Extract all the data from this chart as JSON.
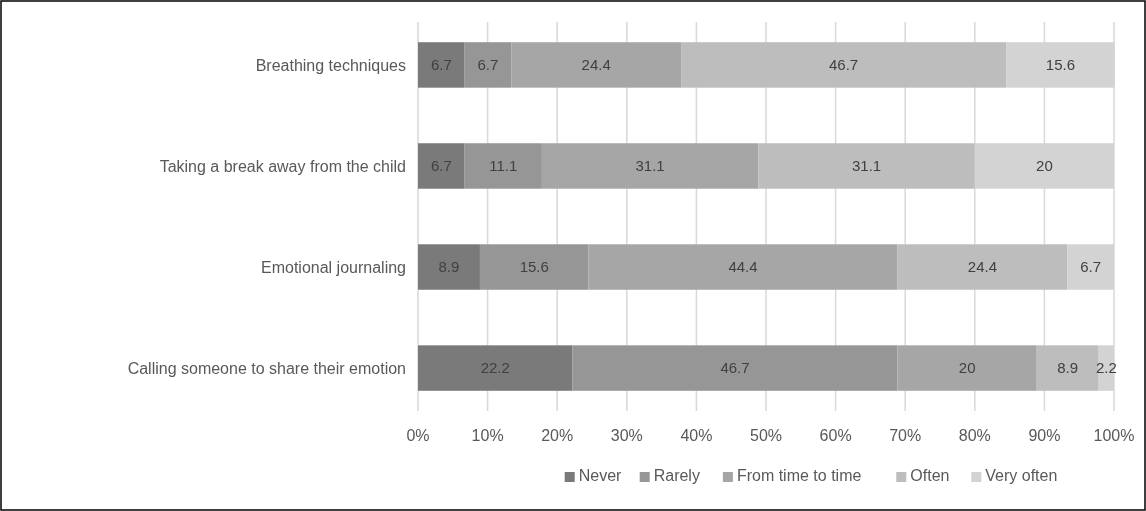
{
  "chart_data": {
    "type": "bar",
    "orientation": "horizontal",
    "stacked": true,
    "categories": [
      "Breathing techniques",
      "Taking a break away from the child",
      "Emotional journaling",
      "Calling someone to share their emotion"
    ],
    "series": [
      {
        "name": "Never",
        "color": "#7a7a7a",
        "values": [
          6.7,
          6.7,
          8.9,
          22.2
        ]
      },
      {
        "name": "Rarely",
        "color": "#969696",
        "values": [
          6.7,
          11.1,
          15.6,
          46.7
        ]
      },
      {
        "name": "From time to time",
        "color": "#a6a6a6",
        "values": [
          24.4,
          31.1,
          44.4,
          20
        ]
      },
      {
        "name": "Often",
        "color": "#bdbdbd",
        "values": [
          46.7,
          31.1,
          24.4,
          8.9
        ]
      },
      {
        "name": "Very often",
        "color": "#d3d3d3",
        "values": [
          15.6,
          20,
          6.7,
          2.2
        ]
      }
    ],
    "xlim": [
      0,
      100
    ],
    "xticks": [
      {
        "value": 0,
        "label": "0%"
      },
      {
        "value": 10,
        "label": "10%"
      },
      {
        "value": 20,
        "label": "20%"
      },
      {
        "value": 30,
        "label": "30%"
      },
      {
        "value": 40,
        "label": "40%"
      },
      {
        "value": 50,
        "label": "50%"
      },
      {
        "value": 60,
        "label": "60%"
      },
      {
        "value": 70,
        "label": "70%"
      },
      {
        "value": 80,
        "label": "80%"
      },
      {
        "value": 90,
        "label": "90%"
      },
      {
        "value": 100,
        "label": "100%"
      }
    ],
    "grid": "x",
    "data_labels": true,
    "legend": "bottom"
  }
}
